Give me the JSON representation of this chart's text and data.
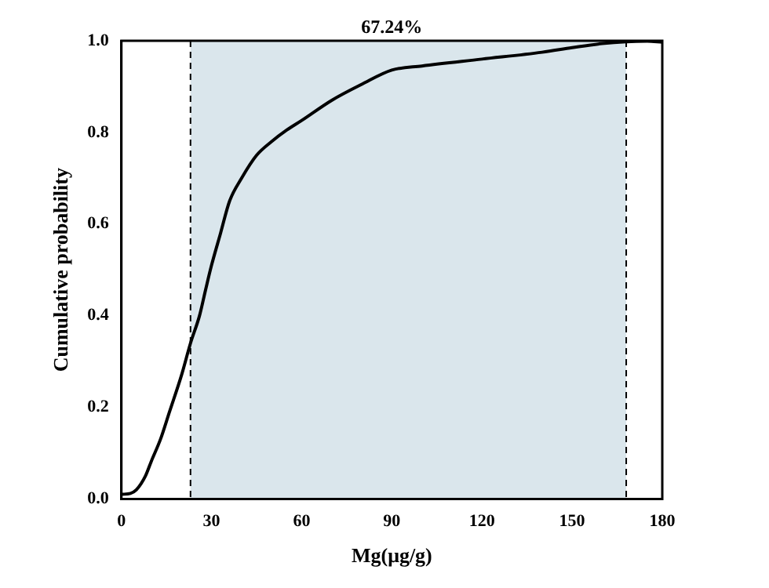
{
  "chart_data": {
    "type": "line",
    "xlabel": "Mg(μg/g)",
    "ylabel": "Cumulative probability",
    "x": [
      0,
      3,
      5,
      8,
      10,
      13,
      16,
      20,
      23,
      26,
      28,
      30,
      33,
      36,
      40,
      45,
      50,
      55,
      60,
      70,
      80,
      90,
      100,
      120,
      140,
      150,
      160,
      168,
      175,
      180
    ],
    "series": [
      {
        "color": "#000000",
        "values": [
          0.01,
          0.012,
          0.02,
          0.05,
          0.083,
          0.13,
          0.19,
          0.27,
          0.34,
          0.4,
          0.456,
          0.51,
          0.58,
          0.65,
          0.7,
          0.75,
          0.78,
          0.805,
          0.826,
          0.87,
          0.905,
          0.936,
          0.945,
          0.96,
          0.975,
          0.985,
          0.994,
          0.998,
          0.999,
          0.997
        ]
      }
    ],
    "xlim": [
      0,
      180
    ],
    "xticks": [
      0,
      30,
      60,
      90,
      120,
      150,
      180
    ],
    "ylim": [
      0,
      1
    ],
    "yticks": [
      {
        "value": 0,
        "label": "0.0"
      },
      0.2,
      0.4,
      0.6,
      0.8,
      {
        "value": 1,
        "label": "1.0"
      }
    ],
    "bands": [
      {
        "axis": "x",
        "from": 23,
        "to": 168,
        "color": "#dae6ec"
      }
    ],
    "ref_lines": [
      {
        "axis": "x",
        "value": 23,
        "color": "#000000",
        "line_style": "dashed"
      },
      {
        "axis": "x",
        "value": 168,
        "color": "#000000",
        "line_style": "dashed"
      }
    ],
    "annotations": [
      "67.24%"
    ],
    "grid": false,
    "legend": false,
    "marker": "none",
    "line_style": "solid"
  }
}
